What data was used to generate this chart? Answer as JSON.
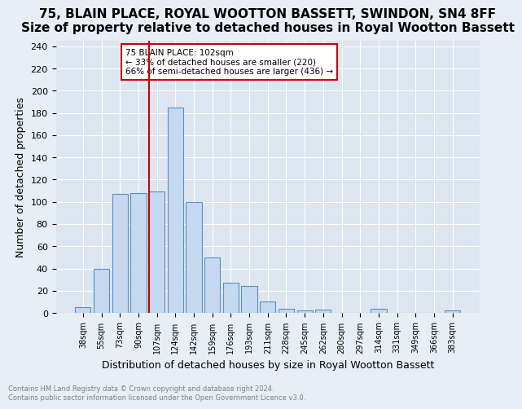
{
  "title": "75, BLAIN PLACE, ROYAL WOOTTON BASSETT, SWINDON, SN4 8FF",
  "subtitle": "Size of property relative to detached houses in Royal Wootton Bassett",
  "xlabel": "Distribution of detached houses by size in Royal Wootton Bassett",
  "ylabel": "Number of detached properties",
  "categories": [
    "38sqm",
    "55sqm",
    "73sqm",
    "90sqm",
    "107sqm",
    "124sqm",
    "142sqm",
    "159sqm",
    "176sqm",
    "193sqm",
    "211sqm",
    "228sqm",
    "245sqm",
    "262sqm",
    "280sqm",
    "297sqm",
    "314sqm",
    "331sqm",
    "349sqm",
    "366sqm",
    "383sqm"
  ],
  "values": [
    5,
    40,
    107,
    108,
    109,
    185,
    100,
    50,
    27,
    24,
    10,
    4,
    2,
    3,
    0,
    0,
    4,
    0,
    0,
    0,
    2
  ],
  "bar_color": "#c5d8f0",
  "bar_edge_color": "#5a8fc0",
  "vline_x": 3.575,
  "vline_color": "#cc0000",
  "annotation_text": "75 BLAIN PLACE: 102sqm\n← 33% of detached houses are smaller (220)\n66% of semi-detached houses are larger (436) →",
  "annotation_box_color": "#ffffff",
  "annotation_box_edge_color": "#cc0000",
  "ylim": [
    0,
    245
  ],
  "yticks": [
    0,
    20,
    40,
    60,
    80,
    100,
    120,
    140,
    160,
    180,
    200,
    220,
    240
  ],
  "title_fontsize": 11,
  "xlabel_fontsize": 9,
  "ylabel_fontsize": 9,
  "footer_line1": "Contains HM Land Registry data © Crown copyright and database right 2024.",
  "footer_line2": "Contains public sector information licensed under the Open Government Licence v3.0.",
  "background_color": "#e8eef5",
  "plot_background_color": "#dde6f0"
}
